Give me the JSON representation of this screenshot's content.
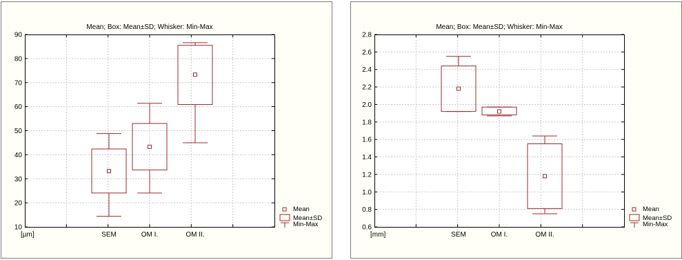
{
  "chart_data": [
    {
      "type": "box",
      "title": "Mean; Box: Mean±SD; Whisker: Min-Max",
      "unit_label": "[µm]",
      "categories": [
        "SEM",
        "OM I.",
        "OM II."
      ],
      "ylim": [
        10,
        90
      ],
      "yticks": [
        "10",
        "20",
        "30",
        "40",
        "50",
        "60",
        "70",
        "80",
        "90"
      ],
      "grid": true,
      "legend_position": "bottom-right",
      "legend": [
        "Mean",
        "Mean±SD",
        "Min-Max"
      ],
      "boxes": [
        {
          "category": "SEM",
          "mean": 33.2,
          "sd_low": 24.1,
          "sd_high": 42.4,
          "min": 14.4,
          "max": 48.8
        },
        {
          "category": "OM I.",
          "mean": 43.3,
          "sd_low": 33.7,
          "sd_high": 53.0,
          "min": 24.1,
          "max": 61.4
        },
        {
          "category": "OM II.",
          "mean": 73.3,
          "sd_low": 60.9,
          "sd_high": 85.5,
          "min": 45.0,
          "max": 86.6
        }
      ]
    },
    {
      "type": "box",
      "title": "Mean; Box: Mean±SD; Whisker: Min-Max",
      "unit_label": "[mm]",
      "categories": [
        "SEM",
        "OM I.",
        "OM II."
      ],
      "ylim": [
        0.6,
        2.8
      ],
      "yticks": [
        "0.6",
        "0.8",
        "1.0",
        "1.2",
        "1.4",
        "1.6",
        "1.8",
        "2.0",
        "2.2",
        "2.4",
        "2.6",
        "2.8"
      ],
      "grid": true,
      "legend_position": "bottom-right",
      "legend": [
        "Mean",
        "Mean±SD",
        "Min-Max"
      ],
      "boxes": [
        {
          "category": "SEM",
          "mean": 2.18,
          "sd_low": 1.92,
          "sd_high": 2.44,
          "min": 1.92,
          "max": 2.55
        },
        {
          "category": "OM I.",
          "mean": 1.92,
          "sd_low": 1.88,
          "sd_high": 1.97,
          "min": 1.87,
          "max": 1.97
        },
        {
          "category": "OM II.",
          "mean": 1.18,
          "sd_low": 0.81,
          "sd_high": 1.55,
          "min": 0.75,
          "max": 1.64
        }
      ]
    }
  ],
  "colors": {
    "series": "#9c2a2a",
    "axis": "#000000",
    "grid": "#c8c8c8",
    "panel_background": "#fffff8",
    "panel_border": "#7a7a7a",
    "text": "#000000"
  }
}
